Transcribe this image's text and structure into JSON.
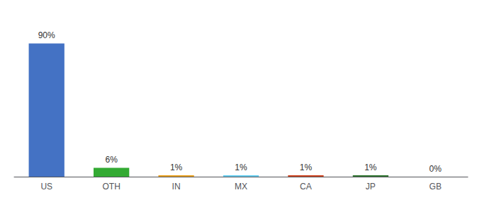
{
  "chart_data": {
    "type": "bar",
    "categories": [
      "US",
      "OTH",
      "IN",
      "MX",
      "CA",
      "JP",
      "GB"
    ],
    "values": [
      90,
      6,
      1,
      1,
      1,
      1,
      0
    ],
    "value_labels": [
      "90%",
      "6%",
      "1%",
      "1%",
      "1%",
      "1%",
      "0%"
    ],
    "colors": [
      "#4472C4",
      "#33AA33",
      "#E8A020",
      "#66CCEE",
      "#CC4422",
      "#337733",
      "#aaaaaa"
    ],
    "ylim": [
      0,
      105
    ],
    "data_labels": true,
    "tick_labels": "x",
    "grid": false
  }
}
